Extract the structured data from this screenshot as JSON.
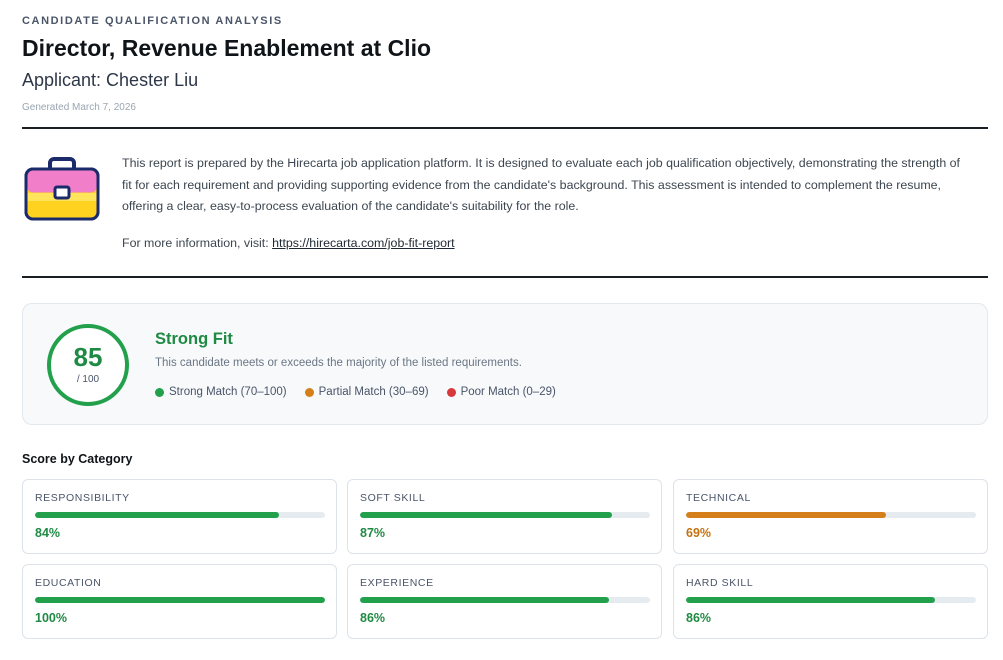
{
  "header": {
    "eyebrow": "CANDIDATE QUALIFICATION ANALYSIS",
    "title": "Director, Revenue Enablement at Clio",
    "applicant": "Applicant: Chester Liu",
    "generated": "Generated March 7, 2026"
  },
  "intro": {
    "icon": "briefcase-icon",
    "body": "This report is prepared by the Hirecarta job application platform. It is designed to evaluate each job qualification objectively, demonstrating the strength of fit for each requirement and providing supporting evidence from the candidate's background. This assessment is intended to complement the resume, offering a clear, easy-to-process evaluation of the candidate's suitability for the role.",
    "more_prefix": "For more information, visit: ",
    "more_link": "https://hirecarta.com/job-fit-report"
  },
  "summary": {
    "score": "85",
    "score_denominator": "/ 100",
    "fit_label": "Strong Fit",
    "fit_description": "This candidate meets or exceeds the majority of the listed requirements.",
    "legend": [
      {
        "label": "Strong Match (70–100)",
        "color": "#22a04b"
      },
      {
        "label": "Partial Match (30–69)",
        "color": "#d57f1a"
      },
      {
        "label": "Poor Match (0–29)",
        "color": "#d63a3a"
      }
    ]
  },
  "categories": {
    "heading": "Score by Category",
    "items": [
      {
        "label": "RESPONSIBILITY",
        "percent_text": "84%",
        "value": 84,
        "color": "#22a04b"
      },
      {
        "label": "SOFT SKILL",
        "percent_text": "87%",
        "value": 87,
        "color": "#22a04b"
      },
      {
        "label": "TECHNICAL",
        "percent_text": "69%",
        "value": 69,
        "color": "#d57f1a"
      },
      {
        "label": "EDUCATION",
        "percent_text": "100%",
        "value": 100,
        "color": "#22a04b"
      },
      {
        "label": "EXPERIENCE",
        "percent_text": "86%",
        "value": 86,
        "color": "#22a04b"
      },
      {
        "label": "HARD SKILL",
        "percent_text": "86%",
        "value": 86,
        "color": "#22a04b"
      }
    ]
  }
}
